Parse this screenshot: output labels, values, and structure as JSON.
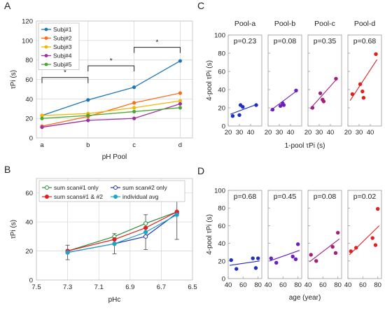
{
  "chart_data": [
    {
      "id": "A",
      "type": "line",
      "panel_label": "A",
      "xlabel": "pH Pool",
      "ylabel": "τPi (s)",
      "categories": [
        "a",
        "b",
        "c",
        "d"
      ],
      "ylim": [
        0,
        120
      ],
      "yticks": [
        0,
        20,
        40,
        60,
        80,
        100,
        120
      ],
      "grid": true,
      "legend": "top-left",
      "series": [
        {
          "name": "Subj#1",
          "color": "#1f77b4",
          "values": [
            23,
            39,
            52,
            79
          ]
        },
        {
          "name": "Subj#2",
          "color": "#ff6a1a",
          "values": [
            12,
            22,
            36,
            46
          ]
        },
        {
          "name": "Subj#3",
          "color": "#f2b705",
          "values": [
            23,
            25,
            31,
            38
          ]
        },
        {
          "name": "Subj#4",
          "color": "#9b30a0",
          "values": [
            11,
            18,
            20,
            35
          ]
        },
        {
          "name": "Subj#5",
          "color": "#4aa832",
          "values": [
            20,
            23,
            27,
            31
          ]
        }
      ],
      "brackets": [
        {
          "from": "a",
          "to": "b",
          "y": 62,
          "label": "*"
        },
        {
          "from": "b",
          "to": "c",
          "y": 74,
          "label": "*"
        },
        {
          "from": "c",
          "to": "d",
          "y": 93,
          "label": "*"
        }
      ]
    },
    {
      "id": "B",
      "type": "line",
      "panel_label": "B",
      "xlabel": "pHc",
      "ylabel": "τPi (s)",
      "x": [
        7.3,
        7.0,
        6.8,
        6.6
      ],
      "xlim": [
        7.5,
        6.5
      ],
      "xticks": [
        7.5,
        7.3,
        7.1,
        6.9,
        6.7,
        6.5
      ],
      "ylim": [
        0,
        70
      ],
      "yticks": [
        0,
        20,
        40,
        60
      ],
      "grid": true,
      "legend": "top",
      "series": [
        {
          "name": "sum scan#1 only",
          "color": "#2e8b3a",
          "marker": "open-circle",
          "values": [
            20,
            30,
            39,
            47
          ]
        },
        {
          "name": "sum scan#2 only",
          "color": "#1f2fbf",
          "marker": "open-circle",
          "values": [
            19,
            25,
            30,
            46
          ]
        },
        {
          "name": "sum scans#1 & #2",
          "color": "#e02020",
          "marker": "filled-circle",
          "values": [
            20,
            28,
            36,
            47
          ]
        },
        {
          "name": "individual avg",
          "color": "#1fa3c9",
          "marker": "filled-circle",
          "values": [
            19,
            25,
            33,
            45
          ],
          "error": [
            5,
            7,
            12,
            17
          ]
        }
      ]
    },
    {
      "id": "C",
      "type": "scatter",
      "panel_label": "C",
      "xlabel": "1-pool τPi (s)",
      "ylabel": "4-pool τPi (s)",
      "xlim": [
        20,
        50
      ],
      "xticks": [
        20,
        30,
        40
      ],
      "ylim": [
        0,
        100
      ],
      "yticks": [
        0,
        20,
        40,
        60,
        80,
        100
      ],
      "subplots": [
        {
          "title": "Pool-a",
          "p": "p=0.23",
          "color": "#1f2fbf",
          "points": [
            [
              24,
              11
            ],
            [
              30,
              12
            ],
            [
              31,
              23
            ],
            [
              33,
              21
            ],
            [
              45,
              23
            ]
          ],
          "fit": [
            [
              22,
              13
            ],
            [
              46,
              24
            ]
          ]
        },
        {
          "title": "Pool-b",
          "p": "p=0.08",
          "color": "#6a1fbf",
          "points": [
            [
              24,
              18
            ],
            [
              31,
              22
            ],
            [
              33,
              25
            ],
            [
              34,
              23
            ],
            [
              45,
              39
            ]
          ],
          "fit": [
            [
              22,
              17
            ],
            [
              46,
              39
            ]
          ]
        },
        {
          "title": "Pool-c",
          "p": "p=0.35",
          "color": "#a0207a",
          "points": [
            [
              24,
              20
            ],
            [
              31,
              36
            ],
            [
              33,
              29
            ],
            [
              34,
              27
            ],
            [
              45,
              52
            ]
          ],
          "fit": [
            [
              22,
              19
            ],
            [
              46,
              52
            ]
          ]
        },
        {
          "title": "Pool-d",
          "p": "p=0.68",
          "color": "#e01f1f",
          "points": [
            [
              24,
              35
            ],
            [
              31,
              46
            ],
            [
              33,
              38
            ],
            [
              34,
              31
            ],
            [
              45,
              79
            ]
          ],
          "fit": [
            [
              22,
              28
            ],
            [
              46,
              73
            ]
          ]
        }
      ]
    },
    {
      "id": "D",
      "type": "scatter",
      "panel_label": "D",
      "xlabel": "age (year)",
      "ylabel": "4-pool τPi (s)",
      "xlim": [
        40,
        85
      ],
      "xticks": [
        40,
        60,
        80
      ],
      "ylim": [
        0,
        100
      ],
      "yticks": [
        0,
        20,
        40,
        60,
        80,
        100
      ],
      "subplots": [
        {
          "title": "",
          "p": "p=0.68",
          "color": "#1f2fbf",
          "points": [
            [
              44,
              21
            ],
            [
              51,
              11
            ],
            [
              73,
              23
            ],
            [
              77,
              12
            ],
            [
              80,
              23
            ]
          ],
          "fit": [
            [
              42,
              15
            ],
            [
              82,
              20
            ]
          ]
        },
        {
          "title": "",
          "p": "p=0.45",
          "color": "#6a1fbf",
          "points": [
            [
              44,
              23
            ],
            [
              51,
              18
            ],
            [
              73,
              25
            ],
            [
              77,
              22
            ],
            [
              80,
              39
            ]
          ],
          "fit": [
            [
              42,
              20
            ],
            [
              82,
              32
            ]
          ]
        },
        {
          "title": "",
          "p": "p=0.08",
          "color": "#a0207a",
          "points": [
            [
              44,
              27
            ],
            [
              51,
              20
            ],
            [
              73,
              36
            ],
            [
              77,
              29
            ],
            [
              80,
              52
            ]
          ],
          "fit": [
            [
              42,
              19
            ],
            [
              82,
              45
            ]
          ]
        },
        {
          "title": "",
          "p": "p=0.02",
          "color": "#e01f1f",
          "points": [
            [
              44,
              31
            ],
            [
              51,
              35
            ],
            [
              73,
              46
            ],
            [
              77,
              38
            ],
            [
              80,
              79
            ]
          ],
          "fit": [
            [
              42,
              27
            ],
            [
              82,
              60
            ]
          ]
        }
      ]
    }
  ]
}
